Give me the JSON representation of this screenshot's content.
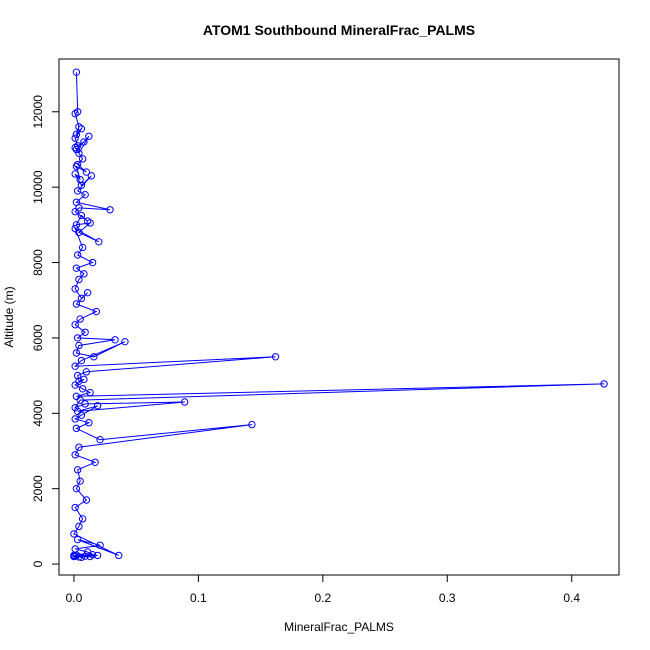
{
  "chart_data": {
    "type": "line",
    "title": "ATOM1 Southbound MineralFrac_PALMS",
    "xlabel": "MineralFrac_PALMS",
    "ylabel": "Altitude (m)",
    "xlim": [
      -0.012,
      0.438
    ],
    "ylim": [
      -290,
      13400
    ],
    "xticks": [
      0.0,
      0.1,
      0.2,
      0.3,
      0.4
    ],
    "xtick_labels": [
      "0.0",
      "0.1",
      "0.2",
      "0.3",
      "0.4"
    ],
    "yticks": [
      0,
      2000,
      4000,
      6000,
      8000,
      10000,
      12000
    ],
    "ytick_labels": [
      "0",
      "2000",
      "4000",
      "6000",
      "8000",
      "10000",
      "12000"
    ],
    "grid": false,
    "color": "#0000ff",
    "marker": "open-circle",
    "series": [
      {
        "x": [
          0.002,
          0.003,
          0.001,
          0.004,
          0.002,
          0.006,
          0.001,
          0.003,
          0.008,
          0.002,
          0.012,
          0.004,
          0.001,
          0.007,
          0.003,
          0.01,
          0.002,
          0.005,
          0.001,
          0.006,
          0.014,
          0.003,
          0.009,
          0.002,
          0.029,
          0.004,
          0.001,
          0.011,
          0.006,
          0.002,
          0.013,
          0.004,
          0.02,
          0.001,
          0.007,
          0.003,
          0.015,
          0.002,
          0.008,
          0.004,
          0.001,
          0.006,
          0.011,
          0.002,
          0.018,
          0.005,
          0.001,
          0.009,
          0.003,
          0.033,
          0.004,
          0.002,
          0.016,
          0.041,
          0.006,
          0.001,
          0.162,
          0.01,
          0.003,
          0.004,
          0.008,
          0.001,
          0.007,
          0.013,
          0.002,
          0.426,
          0.005,
          0.001,
          0.009,
          0.089,
          0.003,
          0.019,
          0.006,
          0.001,
          0.012,
          0.002,
          0.021,
          0.143,
          0.004,
          0.001,
          0.017,
          0.003,
          0.005,
          0.002,
          0.01,
          0.001,
          0.007,
          0.004,
          0.0,
          0.036,
          0.003,
          0.021,
          0.001,
          0.011,
          0.015,
          0.0,
          0.006,
          0.019,
          0.002,
          0.001,
          0.013,
          0.0,
          0.009,
          0.004
        ],
        "y": [
          13050,
          12000,
          11950,
          11600,
          11400,
          11550,
          11300,
          11100,
          11200,
          11000,
          11350,
          10900,
          11050,
          10750,
          10600,
          10400,
          10550,
          10200,
          10350,
          10050,
          10300,
          9900,
          9800,
          9600,
          9400,
          9450,
          9350,
          9100,
          9250,
          9000,
          9050,
          8800,
          8550,
          8900,
          8400,
          8200,
          8000,
          7850,
          7700,
          7550,
          7300,
          7050,
          7200,
          6900,
          6700,
          6500,
          6350,
          6150,
          6000,
          5950,
          5800,
          5600,
          5500,
          5900,
          5400,
          5250,
          5500,
          5100,
          5000,
          4850,
          4900,
          4750,
          4650,
          4550,
          4450,
          4780,
          4350,
          4150,
          4250,
          4300,
          4050,
          4200,
          3950,
          3850,
          3750,
          3600,
          3300,
          3700,
          3100,
          2900,
          2700,
          2500,
          2200,
          2000,
          1700,
          1500,
          1200,
          1000,
          800,
          230,
          650,
          500,
          400,
          320,
          250,
          200,
          180,
          230,
          240,
          210,
          200,
          230,
          210,
          190
        ]
      }
    ]
  }
}
